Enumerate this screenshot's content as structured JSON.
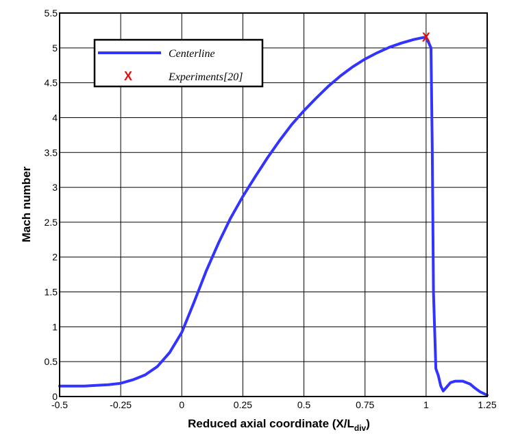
{
  "chart_data": {
    "type": "line",
    "title": "",
    "xlabel": {
      "main": "Reduced axial coordinate (X/L",
      "sub": "div",
      "close": ")"
    },
    "ylabel": "Mach number",
    "xlim": [
      -0.5,
      1.25
    ],
    "ylim": [
      0,
      5.5
    ],
    "xticks": [
      -0.5,
      -0.25,
      0,
      0.25,
      0.5,
      0.75,
      1,
      1.25
    ],
    "xtick_labels": [
      "-0.5",
      "-0.25",
      "0",
      "0.25",
      "0.5",
      "0.75",
      "1",
      "1.25"
    ],
    "yticks": [
      0,
      0.5,
      1,
      1.5,
      2,
      2.5,
      3,
      3.5,
      4,
      4.5,
      5,
      5.5
    ],
    "ytick_labels": [
      "0",
      "0.5",
      "1",
      "1.5",
      "2",
      "2.5",
      "3",
      "3.5",
      "4",
      "4.5",
      "5",
      "5.5"
    ],
    "grid": true,
    "legend_position": "top-left",
    "series": [
      {
        "name": "Centerline",
        "kind": "line",
        "color": "#3333ff",
        "x": [
          -0.5,
          -0.4,
          -0.3,
          -0.25,
          -0.2,
          -0.15,
          -0.1,
          -0.05,
          0,
          0.05,
          0.1,
          0.15,
          0.2,
          0.25,
          0.3,
          0.35,
          0.4,
          0.45,
          0.5,
          0.55,
          0.6,
          0.65,
          0.7,
          0.75,
          0.8,
          0.85,
          0.9,
          0.95,
          0.99,
          1.0,
          1.01,
          1.02,
          1.025,
          1.03,
          1.04,
          1.05,
          1.06,
          1.07,
          1.08,
          1.1,
          1.12,
          1.15,
          1.18,
          1.2,
          1.22,
          1.25
        ],
        "y": [
          0.15,
          0.15,
          0.17,
          0.19,
          0.24,
          0.31,
          0.43,
          0.63,
          0.92,
          1.35,
          1.8,
          2.2,
          2.56,
          2.87,
          3.15,
          3.42,
          3.67,
          3.9,
          4.1,
          4.28,
          4.45,
          4.6,
          4.73,
          4.84,
          4.93,
          5.01,
          5.07,
          5.12,
          5.15,
          5.14,
          5.08,
          5.0,
          3.6,
          1.5,
          0.4,
          0.3,
          0.15,
          0.08,
          0.12,
          0.2,
          0.22,
          0.22,
          0.18,
          0.12,
          0.07,
          0.02
        ]
      },
      {
        "name": "Experiments[20]",
        "kind": "marker",
        "marker": "X",
        "color": "#e01010",
        "x": [
          1.0
        ],
        "y": [
          5.15
        ]
      }
    ]
  }
}
